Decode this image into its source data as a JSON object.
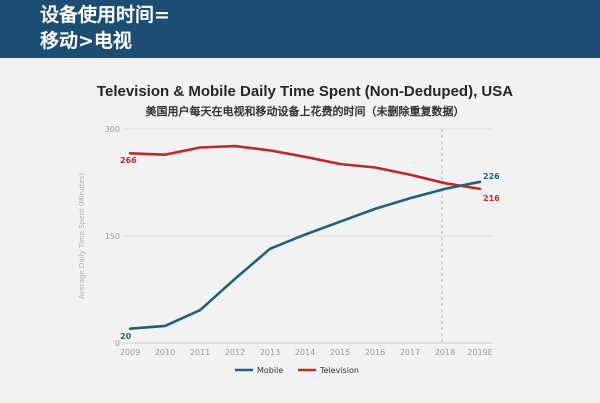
{
  "slide": {
    "title_line1": "设备使用时间=",
    "title_line2": "移动>电视"
  },
  "chart_data": {
    "type": "line",
    "title": "Television & Mobile Daily Time Spent (Non-Deduped), USA",
    "subtitle": "美国用户每天在电视和移动设备上花费的时间（未删除重复数据）",
    "xlabel": "",
    "ylabel": "Average Daily Time Spent (Minutes)",
    "x": [
      "2009",
      "2010",
      "2011",
      "2012",
      "2013",
      "2014",
      "2015",
      "2016",
      "2017",
      "2018",
      "2019E"
    ],
    "ylim": [
      0,
      300
    ],
    "yticks": [
      "0",
      "150",
      "300"
    ],
    "grid": true,
    "legend_position": "bottom",
    "projection_marker_after": "2018",
    "series": [
      {
        "name": "Mobile",
        "color": "#1f5f80",
        "values": [
          20,
          24,
          46,
          90,
          132,
          152,
          170,
          188,
          203,
          216,
          226
        ],
        "label_first": "20",
        "label_last": "226"
      },
      {
        "name": "Television",
        "color": "#c0282a",
        "values": [
          266,
          264,
          274,
          276,
          270,
          261,
          251,
          246,
          236,
          224,
          216
        ],
        "label_first": "266",
        "label_last": "216"
      }
    ]
  }
}
